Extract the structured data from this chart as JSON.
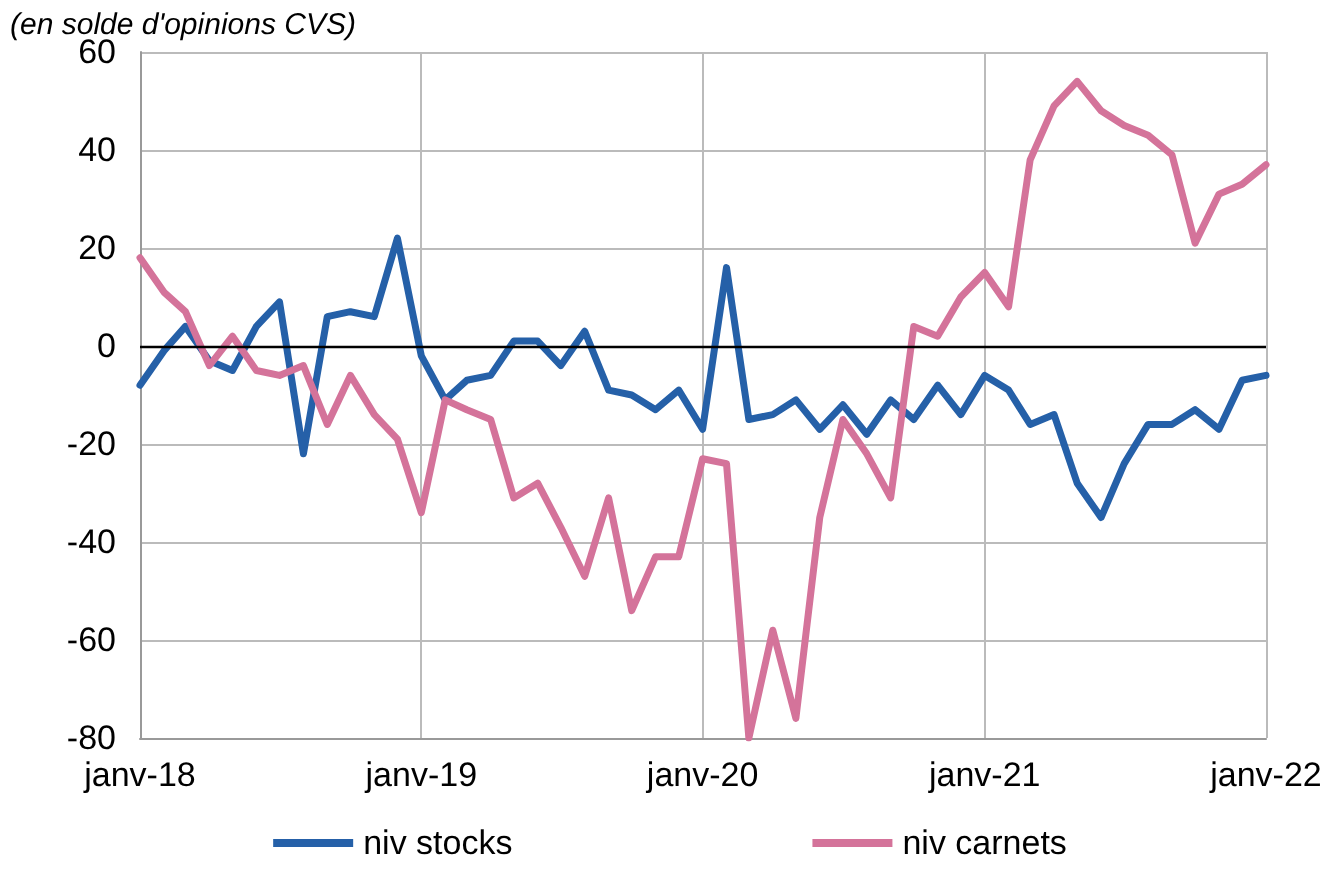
{
  "chart_data": {
    "type": "line",
    "subtitle": "(en solde d'opinions CVS)",
    "x": [
      "2018-01",
      "2018-02",
      "2018-03",
      "2018-04",
      "2018-05",
      "2018-06",
      "2018-07",
      "2018-08",
      "2018-09",
      "2018-10",
      "2018-11",
      "2018-12",
      "2019-01",
      "2019-02",
      "2019-03",
      "2019-04",
      "2019-05",
      "2019-06",
      "2019-07",
      "2019-08",
      "2019-09",
      "2019-10",
      "2019-11",
      "2019-12",
      "2020-01",
      "2020-02",
      "2020-03",
      "2020-04",
      "2020-05",
      "2020-06",
      "2020-07",
      "2020-08",
      "2020-09",
      "2020-10",
      "2020-11",
      "2020-12",
      "2021-01",
      "2021-02",
      "2021-03",
      "2021-04",
      "2021-05",
      "2021-06",
      "2021-07",
      "2021-08",
      "2021-09",
      "2021-10",
      "2021-11",
      "2021-12",
      "2022-01"
    ],
    "series": [
      {
        "name": "niv stocks",
        "color": "#2560a8",
        "values": [
          -8,
          -1,
          4,
          -3,
          -5,
          4,
          9,
          -22,
          6,
          7,
          6,
          22,
          -2,
          -11,
          -7,
          -6,
          1,
          1,
          -4,
          3,
          -9,
          -10,
          -13,
          -9,
          -17,
          16,
          -15,
          -14,
          -11,
          -17,
          -12,
          -18,
          -11,
          -15,
          -8,
          -14,
          -6,
          -9,
          -16,
          -14,
          -28,
          -35,
          -24,
          -16,
          -16,
          -13,
          -17,
          -7,
          -6
        ]
      },
      {
        "name": "niv carnets",
        "color": "#d4739a",
        "values": [
          18,
          11,
          7,
          -4,
          2,
          -5,
          -6,
          -4,
          -16,
          -6,
          -14,
          -19,
          -34,
          -11,
          -13,
          -15,
          -31,
          -28,
          -37,
          -47,
          -31,
          -54,
          -43,
          -43,
          -23,
          -24,
          -80,
          -58,
          -76,
          -35,
          -15,
          -22,
          -31,
          4,
          2,
          10,
          15,
          8,
          38,
          49,
          54,
          48,
          45,
          43,
          39,
          21,
          31,
          33,
          37
        ]
      }
    ],
    "xlim": [
      "2018-01",
      "2022-01"
    ],
    "xticks": [
      {
        "value": "2018-01",
        "label": "janv-18"
      },
      {
        "value": "2019-01",
        "label": "janv-19"
      },
      {
        "value": "2020-01",
        "label": "janv-20"
      },
      {
        "value": "2021-01",
        "label": "janv-21"
      },
      {
        "value": "2022-01",
        "label": "janv-22"
      }
    ],
    "ylim": [
      -80,
      60
    ],
    "yticks": [
      -80,
      -60,
      -40,
      -20,
      0,
      20,
      40,
      60
    ],
    "ref_lines": [
      {
        "axis": "y",
        "value": 0,
        "color": "#000000"
      }
    ],
    "grid": true,
    "legend": "bottom",
    "marker": "none",
    "line_style": "solid"
  }
}
